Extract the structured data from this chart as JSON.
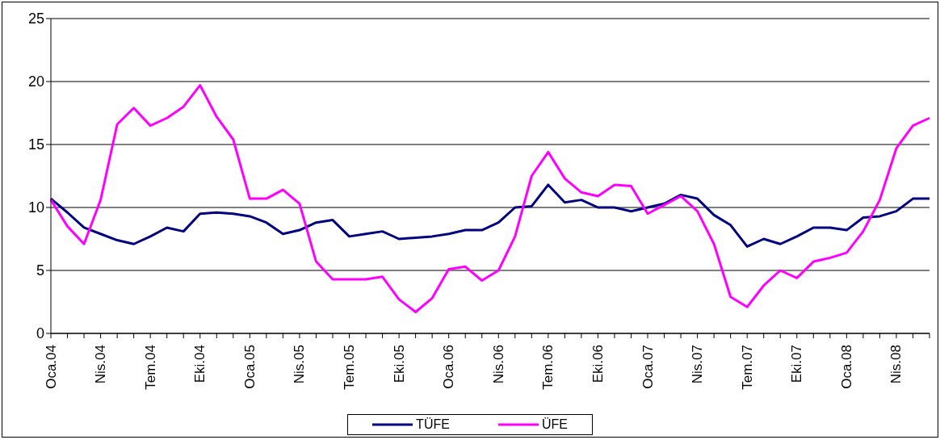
{
  "chart_data": {
    "type": "line",
    "categories": [
      "Oca.04",
      null,
      null,
      "Nis.04",
      null,
      null,
      "Tem.04",
      null,
      null,
      "Eki.04",
      null,
      null,
      "Oca.05",
      null,
      null,
      "Nis.05",
      null,
      null,
      "Tem.05",
      null,
      null,
      "Eki.05",
      null,
      null,
      "Oca.06",
      null,
      null,
      "Nis.06",
      null,
      null,
      "Tem.06",
      null,
      null,
      "Eki.06",
      null,
      null,
      "Oca.07",
      null,
      null,
      "Nis.07",
      null,
      null,
      "Tem.07",
      null,
      null,
      "Eki.07",
      null,
      null,
      "Oca.08",
      null,
      null,
      "Nis.08",
      null,
      null
    ],
    "series": [
      {
        "name": "TÜFE",
        "color": "#000080",
        "values": [
          10.7,
          9.6,
          8.4,
          7.9,
          7.4,
          7.1,
          7.7,
          8.4,
          8.1,
          9.5,
          9.6,
          9.5,
          9.3,
          8.8,
          7.9,
          8.2,
          8.8,
          9.0,
          7.7,
          7.9,
          8.1,
          7.5,
          7.6,
          7.7,
          7.9,
          8.2,
          8.2,
          8.8,
          10.0,
          10.1,
          11.8,
          10.4,
          10.6,
          10.0,
          10.0,
          9.7,
          10.0,
          10.3,
          11.0,
          10.7,
          9.4,
          8.6,
          6.9,
          7.5,
          7.1,
          7.7,
          8.4,
          8.4,
          8.2,
          9.2,
          9.3,
          9.7,
          10.7,
          10.7
        ]
      },
      {
        "name": "ÜFE",
        "color": "#ff00ff",
        "values": [
          10.6,
          8.5,
          7.1,
          10.6,
          16.6,
          17.9,
          16.5,
          17.1,
          18.0,
          19.7,
          17.2,
          15.4,
          10.7,
          10.7,
          11.4,
          10.3,
          5.7,
          4.3,
          4.3,
          4.3,
          4.5,
          2.7,
          1.7,
          2.8,
          5.1,
          5.3,
          4.2,
          5.0,
          7.7,
          12.5,
          14.4,
          12.3,
          11.2,
          10.9,
          11.8,
          11.7,
          9.5,
          10.2,
          10.9,
          9.7,
          7.1,
          2.9,
          2.1,
          3.8,
          5.0,
          4.4,
          5.7,
          6.0,
          6.4,
          8.1,
          10.6,
          14.7,
          16.5,
          17.1
        ]
      }
    ],
    "ylim": [
      0,
      25
    ],
    "yticks": [
      0,
      5,
      10,
      15,
      20,
      25
    ],
    "grid": "y",
    "legend": "bottom",
    "marker": "none",
    "line_style": "solid"
  }
}
